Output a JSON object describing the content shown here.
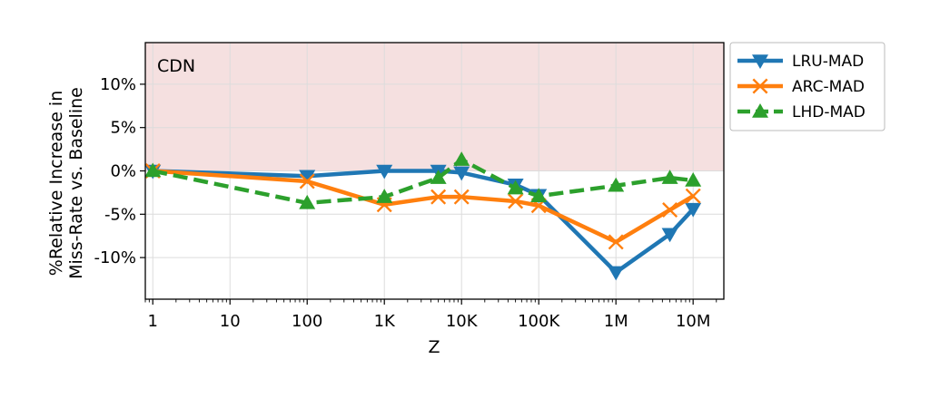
{
  "chart_data": {
    "type": "line",
    "panel_label": "CDN",
    "xlabel": "Z",
    "ylabel_lines": [
      "%Relative Increase in",
      "Miss-Rate vs. Baseline"
    ],
    "x_scale": "log",
    "xlim": [
      0.8,
      25000000
    ],
    "ylim": [
      -14.8,
      14.8
    ],
    "grid": true,
    "legend_position": "right, outside plot",
    "shaded_region": {
      "y_from": 0,
      "y_to": 14.8,
      "color": "#f5e0e0"
    },
    "x_ticks": [
      {
        "value": 1,
        "label": "1"
      },
      {
        "value": 10,
        "label": "10"
      },
      {
        "value": 100,
        "label": "100"
      },
      {
        "value": 1000,
        "label": "1K"
      },
      {
        "value": 10000,
        "label": "10K"
      },
      {
        "value": 100000,
        "label": "100K"
      },
      {
        "value": 1000000,
        "label": "1M"
      },
      {
        "value": 10000000,
        "label": "10M"
      }
    ],
    "y_ticks": [
      {
        "value": 10,
        "label": "10%"
      },
      {
        "value": 5,
        "label": "5%"
      },
      {
        "value": 0,
        "label": "0%"
      },
      {
        "value": -5,
        "label": "-5%"
      },
      {
        "value": -10,
        "label": "-10%"
      }
    ],
    "series": [
      {
        "name": "LRU-MAD",
        "color": "#1f77b4",
        "marker": "triangle-down",
        "dash": "solid",
        "x": [
          1,
          100,
          1000,
          5000,
          10000,
          50000,
          100000,
          1000000,
          5000000,
          10000000
        ],
        "y": [
          0,
          -0.6,
          0,
          0,
          -0.2,
          -1.6,
          -2.8,
          -11.7,
          -7.3,
          -4.4
        ]
      },
      {
        "name": "ARC-MAD",
        "color": "#ff7f0e",
        "marker": "x",
        "dash": "solid",
        "x": [
          1,
          100,
          1000,
          5000,
          10000,
          50000,
          100000,
          1000000,
          5000000,
          10000000
        ],
        "y": [
          0,
          -1.2,
          -3.9,
          -3.0,
          -3.0,
          -3.5,
          -4.0,
          -8.2,
          -4.5,
          -2.9
        ]
      },
      {
        "name": "LHD-MAD",
        "color": "#2ca02c",
        "marker": "triangle-up",
        "dash": "dashed",
        "x": [
          1,
          100,
          1000,
          5000,
          10000,
          50000,
          100000,
          1000000,
          5000000,
          10000000
        ],
        "y": [
          0,
          -3.7,
          -3.0,
          -0.8,
          1.3,
          -2.0,
          -2.9,
          -1.7,
          -0.8,
          -1.1
        ]
      }
    ]
  }
}
